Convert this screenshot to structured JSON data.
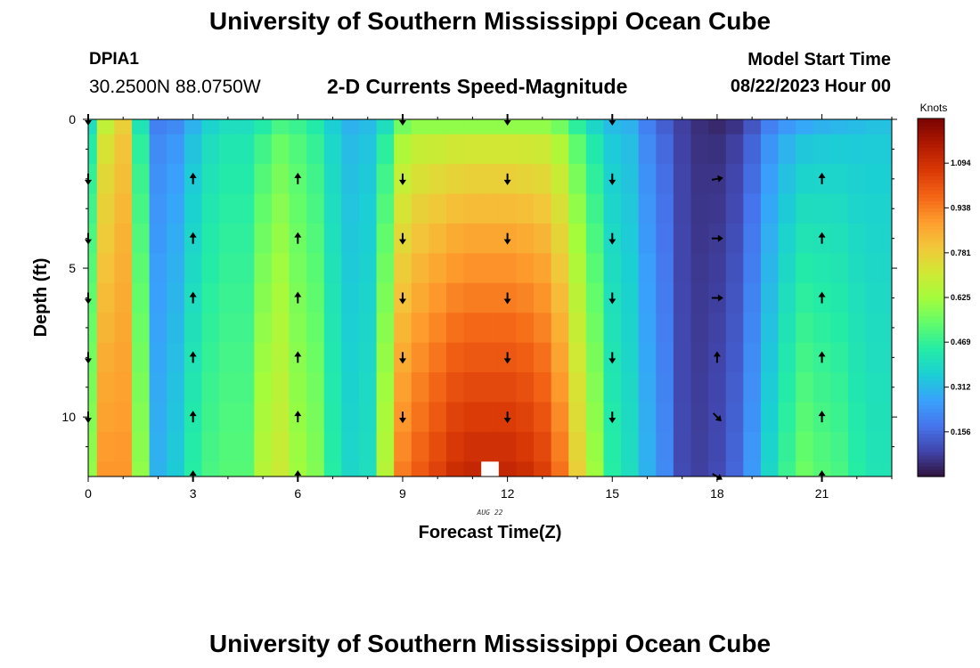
{
  "header": {
    "title": "University of Southern Mississippi Ocean Cube",
    "station": "DPIA1",
    "coordinates": "30.2500N  88.0750W",
    "subtitle": "2-D Currents Speed-Magnitude",
    "model_start_label": "Model Start Time",
    "model_start_value": "08/22/2023 Hour 00"
  },
  "footer": {
    "title": "University of Southern Mississippi Ocean Cube"
  },
  "colors": {
    "background": "#ffffff",
    "missing": "#ffffff",
    "colormap": [
      "#30123b",
      "#4145ab",
      "#4675ed",
      "#39a2fc",
      "#1bcfd4",
      "#24eca6",
      "#61fc6c",
      "#a4fc3b",
      "#d1e834",
      "#f3c63a",
      "#fe9b2d",
      "#f36315",
      "#d93806",
      "#b11901",
      "#7a0402"
    ]
  },
  "chart_data": {
    "type": "heatmap",
    "title": "2-D Currents Speed-Magnitude",
    "xlabel": "Forecast Time(Z)",
    "ylabel": "Depth (ft)",
    "date_label": "AUG 22",
    "x_hours": [
      0,
      0.5,
      1,
      1.5,
      2,
      2.5,
      3,
      3.5,
      4,
      4.5,
      5,
      5.5,
      6,
      6.5,
      7,
      7.5,
      8,
      8.5,
      9,
      9.5,
      10,
      10.5,
      11,
      11.5,
      12,
      12.5,
      13,
      13.5,
      14,
      14.5,
      15,
      15.5,
      16,
      16.5,
      17,
      17.5,
      18,
      18.5,
      19,
      19.5,
      20,
      20.5,
      21,
      21.5,
      22,
      22.5,
      23
    ],
    "depths_ft": [
      0,
      1,
      2,
      3,
      4,
      5,
      6,
      7,
      8,
      9,
      10,
      11,
      12
    ],
    "xlim": [
      0,
      23.0
    ],
    "ylim": [
      0,
      12
    ],
    "xticks": [
      0,
      3,
      6,
      9,
      12,
      15,
      18,
      21
    ],
    "yticks": [
      0,
      5,
      10
    ],
    "colorbar": {
      "label": "Knots",
      "range": [
        0,
        1.25
      ],
      "ticks": [
        "1.094",
        "0.938",
        "0.781",
        "0.625",
        "0.469",
        "0.312",
        "0.156"
      ],
      "tick_values": [
        1.094,
        0.938,
        0.781,
        0.625,
        0.469,
        0.312,
        0.156
      ]
    },
    "surface_profile": [
      0.4,
      0.68,
      0.78,
      0.42,
      0.2,
      0.22,
      0.3,
      0.37,
      0.4,
      0.4,
      0.44,
      0.5,
      0.48,
      0.44,
      0.36,
      0.3,
      0.32,
      0.4,
      0.56,
      0.6,
      0.6,
      0.6,
      0.6,
      0.6,
      0.6,
      0.6,
      0.6,
      0.56,
      0.46,
      0.38,
      0.32,
      0.3,
      0.2,
      0.14,
      0.08,
      0.05,
      0.04,
      0.06,
      0.12,
      0.2,
      0.25,
      0.28,
      0.3,
      0.31,
      0.32,
      0.33,
      0.33
    ],
    "bottom_profile": [
      0.6,
      0.9,
      0.9,
      0.6,
      0.3,
      0.35,
      0.45,
      0.5,
      0.52,
      0.52,
      0.66,
      0.7,
      0.62,
      0.58,
      0.45,
      0.38,
      0.4,
      0.66,
      0.94,
      1.0,
      1.05,
      1.1,
      1.12,
      1.12,
      1.12,
      1.1,
      1.06,
      0.96,
      0.78,
      0.62,
      0.45,
      0.4,
      0.3,
      0.22,
      0.1,
      0.08,
      0.1,
      0.15,
      0.25,
      0.38,
      0.48,
      0.55,
      0.52,
      0.5,
      0.45,
      0.42,
      0.42
    ],
    "missing_cells": [
      {
        "hour": 11.5,
        "depth": 12
      }
    ],
    "vectors": {
      "hours": [
        0,
        3,
        6,
        9,
        12,
        15,
        18,
        21
      ],
      "depths_ft": [
        0,
        2,
        4,
        6,
        8,
        10,
        12
      ],
      "directions_deg": [
        [
          180,
          null,
          null,
          180,
          180,
          180,
          null,
          null
        ],
        [
          180,
          0,
          0,
          180,
          180,
          180,
          80,
          0
        ],
        [
          180,
          0,
          0,
          180,
          180,
          180,
          90,
          0
        ],
        [
          180,
          0,
          0,
          180,
          180,
          180,
          90,
          0
        ],
        [
          180,
          0,
          0,
          180,
          180,
          180,
          0,
          0
        ],
        [
          180,
          0,
          0,
          180,
          180,
          180,
          135,
          0
        ],
        [
          null,
          0,
          0,
          null,
          null,
          null,
          120,
          0
        ]
      ]
    }
  }
}
